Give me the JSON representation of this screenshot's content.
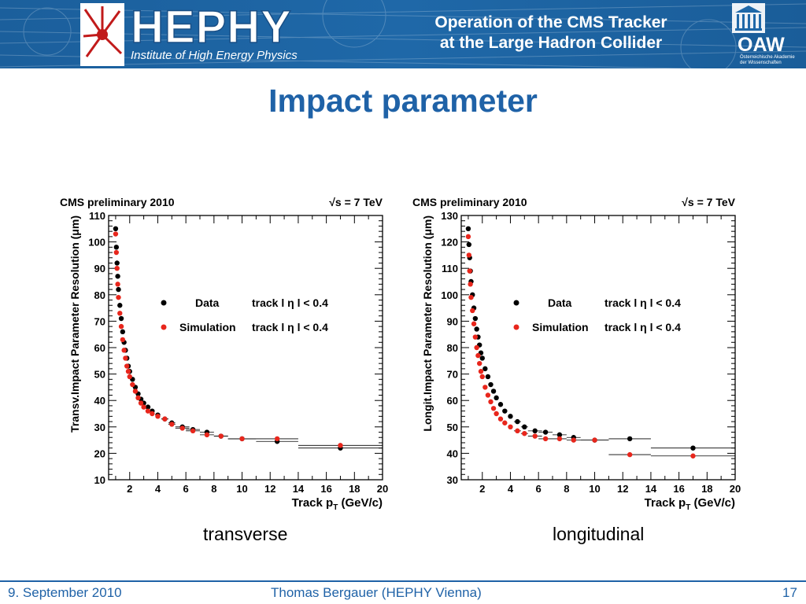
{
  "header": {
    "logo_name": "HEPHY",
    "logo_subtitle": "Institute of High Energy Physics",
    "title_line1": "Operation of the CMS Tracker",
    "title_line2": "at the Large Hadron Collider",
    "partner_logo": "OAW",
    "partner_subtitle": "Österreichische Akademie der Wissenschaften"
  },
  "slide": {
    "title": "Impact parameter"
  },
  "captions": {
    "left": "transverse",
    "right": "longitudinal"
  },
  "footer": {
    "date": "9. September 2010",
    "author": "Thomas Bergauer (HEPHY Vienna)",
    "page": "17"
  },
  "colors": {
    "header_bg": "#1f68a8",
    "title_blue": "#1f62a7",
    "data": "#000000",
    "simulation": "#e8261c"
  },
  "chart_data": [
    {
      "type": "scatter",
      "title": "CMS preliminary 2010",
      "energy_label": "√s = 7 TeV",
      "xlabel": "Track p_T (GeV/c)",
      "ylabel": "Transv.Impact Parameter Resolution (μm)",
      "xlim": [
        0.5,
        20
      ],
      "ylim": [
        10,
        110
      ],
      "xticks": [
        2,
        4,
        6,
        8,
        10,
        12,
        14,
        16,
        18,
        20
      ],
      "yticks": [
        10,
        20,
        30,
        40,
        50,
        60,
        70,
        80,
        90,
        100,
        110
      ],
      "grid": false,
      "legend": "center-right",
      "series": [
        {
          "name": "Data",
          "qualifier": "track l η l < 0.4",
          "color": "#000000",
          "x": [
            1.0,
            1.05,
            1.1,
            1.15,
            1.2,
            1.3,
            1.4,
            1.5,
            1.6,
            1.7,
            1.8,
            1.9,
            2.0,
            2.2,
            2.4,
            2.6,
            2.8,
            3.0,
            3.3,
            3.6,
            4.0,
            4.5,
            5.0,
            5.75,
            6.5,
            7.5,
            8.5,
            10.0,
            12.5,
            17.0
          ],
          "y": [
            105,
            98,
            92,
            87,
            82,
            76,
            71,
            66,
            62,
            59,
            56,
            53,
            51,
            48,
            45,
            42.5,
            40.5,
            39,
            37.5,
            36,
            34.5,
            33,
            31.5,
            30,
            29,
            28,
            26.5,
            25.5,
            24.5,
            22
          ],
          "xerr": [
            0,
            0,
            0,
            0,
            0,
            0,
            0,
            0,
            0,
            0,
            0,
            0,
            0,
            0,
            0,
            0,
            0,
            0,
            0,
            0,
            0,
            0.25,
            0.25,
            0.5,
            0.5,
            0.5,
            0.5,
            1.0,
            1.5,
            3.0
          ]
        },
        {
          "name": "Simulation",
          "qualifier": "track l η l < 0.4",
          "color": "#e8261c",
          "x": [
            1.0,
            1.05,
            1.1,
            1.15,
            1.2,
            1.3,
            1.4,
            1.5,
            1.6,
            1.7,
            1.8,
            1.9,
            2.0,
            2.2,
            2.4,
            2.6,
            2.8,
            3.0,
            3.3,
            3.6,
            4.0,
            4.5,
            5.0,
            5.75,
            6.5,
            7.5,
            8.5,
            10.0,
            12.5,
            17.0
          ],
          "y": [
            103,
            96,
            90,
            84,
            79,
            73,
            68,
            63,
            59,
            56,
            53,
            51,
            49,
            46,
            43.5,
            41,
            39,
            37.5,
            36,
            35,
            34,
            33,
            31,
            29.5,
            28.5,
            27,
            26.5,
            25.5,
            25.5,
            23
          ],
          "xerr": [
            0,
            0,
            0,
            0,
            0,
            0,
            0,
            0,
            0,
            0,
            0,
            0,
            0,
            0,
            0,
            0,
            0,
            0,
            0,
            0,
            0,
            0.25,
            0.25,
            0.5,
            0.5,
            0.5,
            0.5,
            1.0,
            1.5,
            3.0
          ]
        }
      ]
    },
    {
      "type": "scatter",
      "title": "CMS preliminary 2010",
      "energy_label": "√s = 7 TeV",
      "xlabel": "Track p_T (GeV/c)",
      "ylabel": "Longit.Impact Parameter Resolution (μm)",
      "xlim": [
        0.5,
        20
      ],
      "ylim": [
        30,
        130
      ],
      "xticks": [
        2,
        4,
        6,
        8,
        10,
        12,
        14,
        16,
        18,
        20
      ],
      "yticks": [
        30,
        40,
        50,
        60,
        70,
        80,
        90,
        100,
        110,
        120,
        130
      ],
      "grid": false,
      "legend": "center-right",
      "series": [
        {
          "name": "Data",
          "qualifier": "track l η l < 0.4",
          "color": "#000000",
          "x": [
            1.0,
            1.05,
            1.1,
            1.15,
            1.2,
            1.3,
            1.4,
            1.5,
            1.6,
            1.7,
            1.8,
            1.9,
            2.0,
            2.2,
            2.4,
            2.6,
            2.8,
            3.0,
            3.3,
            3.6,
            4.0,
            4.5,
            5.0,
            5.75,
            6.5,
            7.5,
            8.5,
            10.0,
            12.5,
            17.0
          ],
          "y": [
            125,
            119,
            114,
            109,
            105,
            100,
            95,
            91,
            87,
            84,
            81,
            78,
            76,
            72,
            69,
            66,
            63.5,
            61,
            58.5,
            56,
            54,
            52,
            50,
            48.5,
            48,
            47,
            46,
            45,
            45.5,
            42
          ],
          "xerr": [
            0,
            0,
            0,
            0,
            0,
            0,
            0,
            0,
            0,
            0,
            0,
            0,
            0,
            0,
            0,
            0,
            0,
            0,
            0,
            0,
            0,
            0.25,
            0.25,
            0.5,
            0.5,
            0.5,
            0.5,
            1.0,
            1.5,
            3.0
          ]
        },
        {
          "name": "Simulation",
          "qualifier": "track l η l < 0.4",
          "color": "#e8261c",
          "x": [
            1.0,
            1.05,
            1.1,
            1.15,
            1.2,
            1.3,
            1.4,
            1.5,
            1.6,
            1.7,
            1.8,
            1.9,
            2.0,
            2.2,
            2.4,
            2.6,
            2.8,
            3.0,
            3.3,
            3.6,
            4.0,
            4.5,
            5.0,
            5.75,
            6.5,
            7.5,
            8.5,
            10.0,
            12.5,
            17.0
          ],
          "y": [
            122,
            115,
            109,
            104,
            99,
            94,
            89,
            84,
            80,
            77,
            74,
            71,
            69,
            65,
            62,
            59.5,
            57,
            55,
            53,
            51.5,
            50,
            48.5,
            47.5,
            46.5,
            45.5,
            45.5,
            45,
            45,
            39.5,
            39
          ],
          "xerr": [
            0,
            0,
            0,
            0,
            0,
            0,
            0,
            0,
            0,
            0,
            0,
            0,
            0,
            0,
            0,
            0,
            0,
            0,
            0,
            0,
            0,
            0.25,
            0.25,
            0.5,
            0.5,
            0.5,
            0.5,
            1.0,
            1.5,
            3.0
          ]
        }
      ]
    }
  ]
}
